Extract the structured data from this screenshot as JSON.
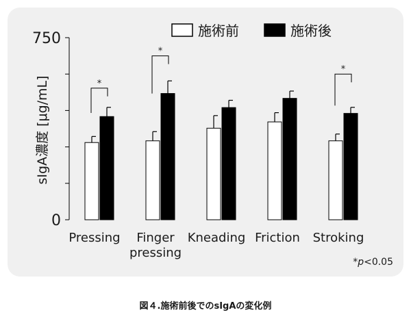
{
  "chart_data": {
    "type": "bar",
    "ylabel": "sIgA濃度 [μg/mL]",
    "ylim": [
      0,
      750
    ],
    "yticks": [
      0,
      750
    ],
    "ytick_labels": [
      "0",
      "750"
    ],
    "minor_ticks": [
      150,
      300,
      450,
      600
    ],
    "categories": [
      [
        "Pressing"
      ],
      [
        "Finger",
        "pressing"
      ],
      [
        "Kneading"
      ],
      [
        "Friction"
      ],
      [
        "Stroking"
      ]
    ],
    "series": [
      {
        "name": "施術前",
        "color": "#ffffff",
        "stroke": "#000000",
        "values": [
          318,
          325,
          377,
          403,
          325
        ],
        "errors": [
          25,
          38,
          52,
          38,
          28
        ]
      },
      {
        "name": "施術後",
        "color": "#000000",
        "stroke": "#000000",
        "values": [
          425,
          520,
          462,
          500,
          438
        ],
        "errors": [
          38,
          52,
          30,
          30,
          25
        ]
      }
    ],
    "significance": [
      {
        "category": 0,
        "label": "*",
        "bracket_y": 542,
        "drop_y": 440
      },
      {
        "category": 1,
        "label": "*",
        "bracket_y": 675,
        "drop_y": 520
      },
      {
        "category": 4,
        "label": "*",
        "bracket_y": 600,
        "drop_y": 470
      }
    ],
    "legend_position": "top-right",
    "grid": false
  },
  "footnote": {
    "prefix": "*",
    "italic": "p",
    "suffix": "<0.05"
  },
  "caption": "図４.施術前後でのsIgAの変化例"
}
